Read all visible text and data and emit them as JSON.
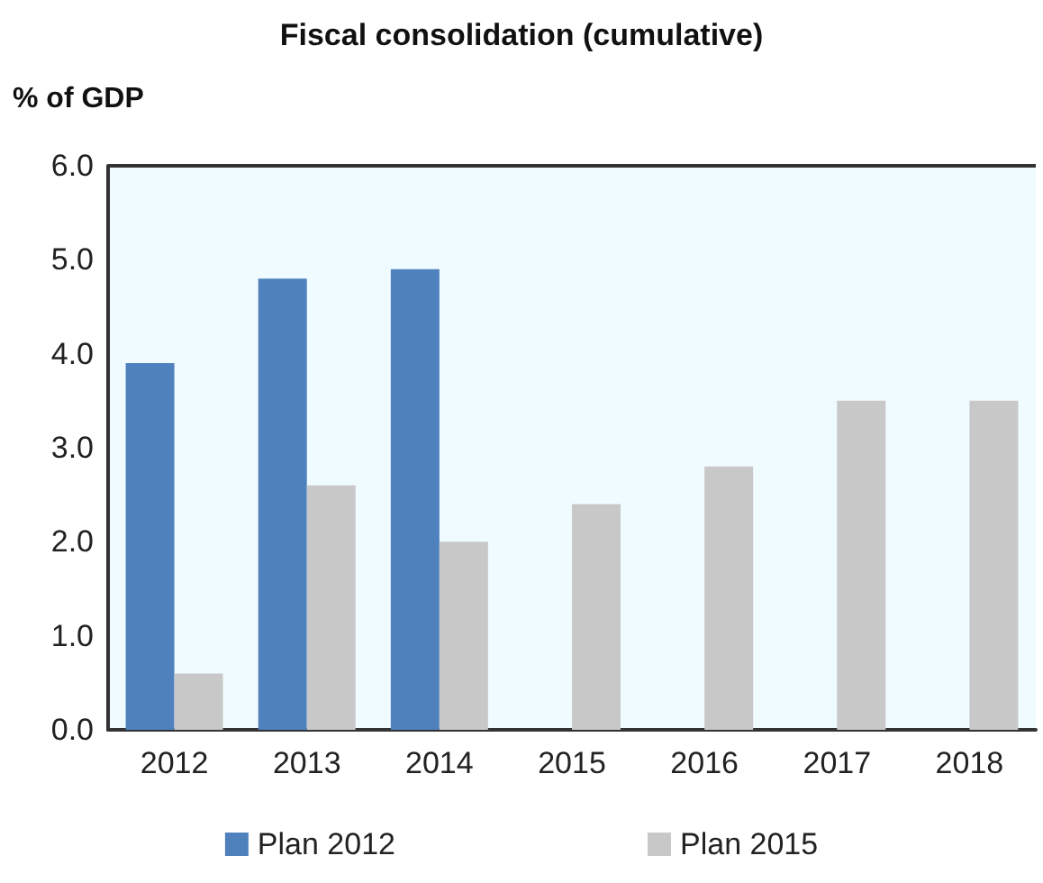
{
  "chart_data": {
    "type": "bar",
    "title": "Fiscal consolidation (cumulative)",
    "ylabel": "% of GDP",
    "categories": [
      "2012",
      "2013",
      "2014",
      "2015",
      "2016",
      "2017",
      "2018"
    ],
    "series": [
      {
        "name": "Plan 2012",
        "color": "#4f81bd",
        "values": [
          3.9,
          4.8,
          4.9,
          null,
          null,
          null,
          null
        ]
      },
      {
        "name": "Plan 2015",
        "color": "#c8c8c8",
        "values": [
          0.6,
          2.6,
          2.0,
          2.4,
          2.8,
          3.5,
          3.5
        ]
      }
    ],
    "ylim": [
      0,
      6
    ],
    "yticks": [
      {
        "value": 0,
        "label": "0.0"
      },
      {
        "value": 1,
        "label": "1.0"
      },
      {
        "value": 2,
        "label": "2.0"
      },
      {
        "value": 3,
        "label": "3.0"
      },
      {
        "value": 4,
        "label": "4.0"
      },
      {
        "value": 5,
        "label": "5.0"
      },
      {
        "value": 6,
        "label": "6.0"
      }
    ],
    "grid": false,
    "legend": "bottom"
  }
}
